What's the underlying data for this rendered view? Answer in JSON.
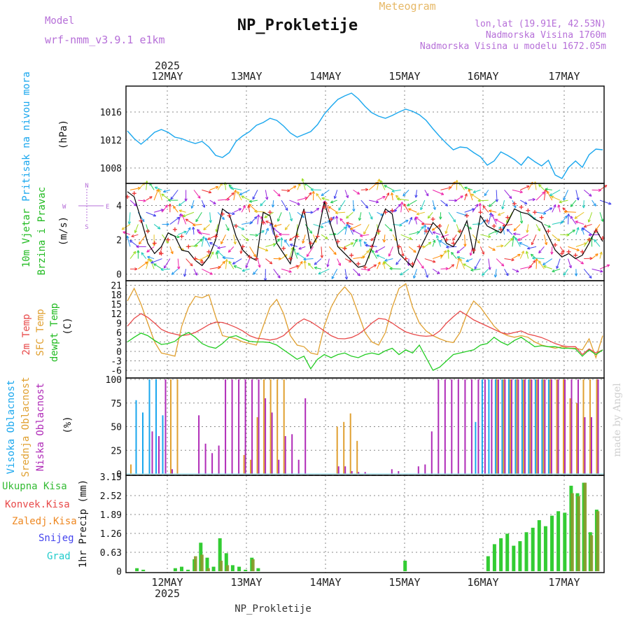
{
  "header": {
    "model_label": "Model",
    "model_name": "wrf-nmm_v3.9.1  e1km",
    "title": "NP_Prokletije",
    "subtitle": "Meteogram",
    "lonlat": "lon,lat (19.91E, 42.53N)",
    "altitude": "Nadmorska Visina 1760m",
    "model_altitude": "Nadmorska Visina u modelu 1672.05m",
    "footer_station": "NP_Prokletije",
    "made_by": "made by Angel"
  },
  "time_axis": {
    "year": "2025",
    "days": [
      "12MAY",
      "13MAY",
      "14MAY",
      "15MAY",
      "16MAY",
      "17MAY"
    ]
  },
  "colors": {
    "pressure": "#1aa7ee",
    "wind_speed": "#000000",
    "gust": "#ee3333",
    "temp2m": "#e84a4a",
    "sfc_temp": "#e0a030",
    "dewpoint": "#22cc22",
    "high_cloud": "#1aa7ee",
    "mid_cloud": "#e0a030",
    "low_cloud": "#b02cb8",
    "total_precip": "#33cc33",
    "conv_precip": "#e84a4a",
    "frozen_precip": "#ee8822",
    "snow": "#4444ee",
    "hail": "#22cccc",
    "label_purple": "#b66fd8"
  },
  "panels": {
    "pressure": {
      "label1": "Pritisak na nivou mora",
      "unit": "(hPa)",
      "ticks": [
        "1008",
        "1012",
        "1016"
      ]
    },
    "wind": {
      "label1": "10m Vjetar",
      "label2": "Brzina i Pravac",
      "unit": "(m/s)",
      "ticks": [
        "0",
        "2",
        "4"
      ],
      "compass": {
        "n": "N",
        "s": "S",
        "e": "E",
        "w": "W"
      }
    },
    "temp": {
      "label1": "2m Temp",
      "label2": "SFC Temp",
      "label3": "dewpt Temp",
      "unit": "(C)",
      "ticks": [
        "-6",
        "-3",
        "0",
        "3",
        "6",
        "9",
        "12",
        "15",
        "18",
        "21"
      ]
    },
    "cloud": {
      "label1": "Visoka Oblacnost",
      "label2": "Srednja Oblacnost",
      "label3": "Niska Oblacnost",
      "unit": "(%)",
      "ticks": [
        "0",
        "25",
        "50",
        "75",
        "100"
      ]
    },
    "precip": {
      "label_total": "Ukupna Kisa",
      "label_conv": "Konvek.Kisa",
      "label_frozen": "Zaledj.Kisa",
      "label_snow": "Snijeg",
      "label_hail": "Grad",
      "unit": "1hr Precip (mm)",
      "ticks": [
        "0",
        "0.63",
        "1.26",
        "1.89",
        "2.52",
        "3.15"
      ]
    }
  },
  "chart_data": [
    {
      "type": "line",
      "series": [
        {
          "values": [
            1013.3,
            1012.2,
            1011.4,
            1012.2,
            1013.1,
            1013.5,
            1013.1,
            1012.4,
            1012.2,
            1011.8,
            1011.5,
            1011.8,
            1011.0,
            1009.8,
            1009.5,
            1010.2,
            1011.8,
            1012.6,
            1013.2,
            1014.1,
            1014.5,
            1015.1,
            1014.8,
            1014.0,
            1013.0,
            1012.4,
            1012.8,
            1013.2,
            1014.2,
            1015.7,
            1016.8,
            1017.8,
            1018.3,
            1018.7,
            1017.9,
            1016.8,
            1015.9,
            1015.4,
            1015.1,
            1015.5,
            1016.0,
            1016.4,
            1016.1,
            1015.6,
            1014.8,
            1013.6,
            1012.5,
            1011.5,
            1010.6,
            1011.0,
            1010.9,
            1010.2,
            1009.6,
            1008.4,
            1009.0,
            1010.3,
            1009.8,
            1009.2,
            1008.4,
            1009.6,
            1008.9,
            1008.3,
            1009.1,
            1007.0,
            1006.5,
            1008.1,
            1009.0,
            1008.1,
            1009.9,
            1010.7,
            1010.6
          ]
        }
      ],
      "ylim": [
        1006,
        1019.5
      ]
    },
    {
      "type": "line",
      "series": [
        {
          "values": [
            4.8,
            4.5,
            3.2,
            1.8,
            1.2,
            1.6,
            2.4,
            2.2,
            1.4,
            1.3,
            0.8,
            0.5,
            1.0,
            2.0,
            3.8,
            3.5,
            2.2,
            1.4,
            1.0,
            0.8,
            3.6,
            3.4,
            1.8,
            1.2,
            0.6,
            2.5,
            3.8,
            1.5,
            2.2,
            4.2,
            2.8,
            1.6,
            1.2,
            0.8,
            0.4,
            0.5,
            1.5,
            2.8,
            3.8,
            3.5,
            1.2,
            0.8,
            0.4,
            1.4,
            2.2,
            3.0,
            2.6,
            1.8,
            1.6,
            2.2,
            3.1,
            1.2,
            3.4,
            2.8,
            2.6,
            2.4,
            3.0,
            3.8,
            3.6,
            3.5,
            3.2,
            3.0,
            2.2,
            1.4,
            1.0,
            1.2,
            0.9,
            1.1,
            1.8,
            2.6,
            1.9
          ]
        },
        {
          "values": [
            4.5,
            4.7,
            3.1,
            2.5,
            1.8,
            1.2,
            2.0,
            2.6,
            2.2,
            1.6,
            0.9,
            0.7,
            1.3,
            2.2,
            3.5,
            3.4,
            2.8,
            1.6,
            1.0,
            0.9,
            3.0,
            3.6,
            2.2,
            1.5,
            0.9,
            2.2,
            3.6,
            1.8,
            2.2,
            3.9,
            3.2,
            1.9,
            1.5,
            1.1,
            0.6,
            0.4,
            1.6,
            2.5,
            3.6,
            3.7,
            1.6,
            0.9,
            0.6,
            1.6,
            2.5,
            3.2,
            2.8,
            2.0,
            1.8,
            2.5,
            3.4,
            1.4,
            3.6,
            3.1,
            2.8,
            2.6,
            3.3,
            4.1,
            3.9,
            3.7,
            3.6,
            3.3,
            2.5,
            1.7,
            1.2,
            1.3,
            1.1,
            1.3,
            2.0,
            2.5,
            2.1
          ]
        }
      ],
      "ylim": [
        -0.3,
        5.2
      ]
    },
    {
      "type": "line",
      "series": [
        {
          "values": [
            8.0,
            10.5,
            12.0,
            10.8,
            9.0,
            7.0,
            6.0,
            5.5,
            5.0,
            5.3,
            6.0,
            7.2,
            8.5,
            9.3,
            9.2,
            8.5,
            7.6,
            6.5,
            5.0,
            4.2,
            4.0,
            3.6,
            4.0,
            5.0,
            7.0,
            9.0,
            10.3,
            9.4,
            8.0,
            6.5,
            5.0,
            4.1,
            4.0,
            4.4,
            5.4,
            7.0,
            9.0,
            10.5,
            10.2,
            9.0,
            7.5,
            6.2,
            5.5,
            5.0,
            4.8,
            5.0,
            6.5,
            9.0,
            11.0,
            12.8,
            11.5,
            10.0,
            9.0,
            8.0,
            7.0,
            6.0,
            5.5,
            6.0,
            6.5,
            5.5,
            5.0,
            4.4,
            3.5,
            2.5,
            1.8,
            1.5,
            1.5,
            -1.0,
            0.8,
            -0.5,
            0.5
          ]
        },
        {
          "values": [
            16.0,
            20.0,
            15.0,
            9.0,
            3.0,
            -0.5,
            -1.0,
            -1.5,
            8.0,
            14.0,
            17.5,
            17.0,
            18.0,
            11.0,
            5.0,
            4.5,
            4.0,
            3.0,
            2.5,
            2.0,
            8.0,
            14.0,
            16.5,
            12.0,
            5.0,
            2.0,
            1.5,
            -0.5,
            -1.0,
            8.0,
            14.0,
            18.0,
            20.5,
            18.0,
            12.0,
            6.0,
            3.0,
            2.0,
            6.0,
            14.0,
            20.0,
            21.5,
            14.0,
            9.0,
            6.5,
            5.0,
            4.0,
            3.2,
            2.8,
            6.0,
            12.0,
            16.0,
            14.0,
            11.0,
            8.0,
            6.0,
            5.0,
            4.5,
            5.0,
            4.5,
            3.0,
            2.0,
            1.5,
            1.0,
            1.5,
            1.0,
            1.0,
            0.5,
            4.0,
            -2.0,
            5.0
          ]
        },
        {
          "values": [
            3.0,
            4.5,
            5.8,
            5.0,
            3.5,
            2.2,
            2.5,
            3.2,
            5.0,
            6.0,
            4.5,
            2.5,
            1.5,
            1.0,
            2.5,
            4.5,
            5.0,
            4.0,
            3.2,
            3.0,
            3.0,
            2.8,
            2.0,
            0.5,
            -1.0,
            -2.5,
            -1.5,
            -5.5,
            -2.5,
            -1.0,
            -2.0,
            -1.0,
            -0.5,
            -1.5,
            -2.0,
            -1.0,
            -0.5,
            -1.0,
            0.2,
            1.0,
            -1.0,
            0.5,
            -0.5,
            2.0,
            -2.0,
            -6.0,
            -5.0,
            -3.0,
            -1.0,
            -0.5,
            0.0,
            0.5,
            2.0,
            2.5,
            4.5,
            3.0,
            2.0,
            3.5,
            4.5,
            3.0,
            1.5,
            1.8,
            1.5,
            1.5,
            1.0,
            1.0,
            0.8,
            -1.5,
            0.5,
            -1.0,
            0.5
          ]
        }
      ],
      "ylim": [
        -8,
        22
      ]
    },
    {
      "type": "bar",
      "series": [
        {
          "values": [
            0,
            78,
            65,
            100,
            100,
            62,
            0,
            0,
            0,
            0,
            0,
            0,
            0,
            0,
            0,
            0,
            0,
            0,
            0,
            0,
            0,
            0,
            0,
            0,
            0,
            0,
            0,
            0,
            0,
            0,
            0,
            0,
            0,
            0,
            0,
            0,
            0,
            0,
            0,
            0,
            0,
            0,
            0,
            0,
            0,
            0,
            0,
            0,
            0,
            0,
            0,
            0,
            55,
            100,
            100,
            100,
            100,
            100,
            100,
            100,
            100,
            100,
            100,
            100,
            0,
            0,
            0,
            0,
            0,
            0,
            0
          ]
        },
        {
          "values": [
            10,
            0,
            0,
            0,
            0,
            0,
            100,
            100,
            0,
            0,
            0,
            0,
            0,
            0,
            0,
            0,
            0,
            20,
            15,
            60,
            100,
            100,
            100,
            100,
            0,
            0,
            0,
            0,
            0,
            0,
            0,
            50,
            55,
            64,
            35,
            0,
            0,
            0,
            0,
            0,
            0,
            0,
            0,
            0,
            0,
            0,
            0,
            0,
            0,
            0,
            0,
            0,
            0,
            0,
            0,
            100,
            100,
            100,
            100,
            100,
            100,
            100,
            100,
            100,
            100,
            100,
            80,
            75,
            100,
            100,
            100
          ]
        },
        {
          "values": [
            0,
            0,
            0,
            45,
            40,
            100,
            5,
            0,
            0,
            0,
            62,
            32,
            22,
            30,
            100,
            100,
            100,
            100,
            100,
            100,
            80,
            65,
            15,
            40,
            42,
            15,
            80,
            0,
            0,
            0,
            0,
            8,
            8,
            3,
            2,
            2,
            0,
            0,
            0,
            5,
            3,
            0,
            0,
            8,
            10,
            45,
            100,
            100,
            100,
            100,
            100,
            100,
            100,
            100,
            100,
            100,
            100,
            100,
            100,
            100,
            100,
            100,
            100,
            100,
            100,
            100,
            100,
            100,
            60,
            60,
            100
          ]
        }
      ],
      "ylim": [
        0,
        100
      ]
    },
    {
      "type": "bar",
      "series": [
        {
          "values": [
            0,
            0.1,
            0.05,
            0,
            0,
            0,
            0,
            0.1,
            0.15,
            0.05,
            0.4,
            0.95,
            0.45,
            0.15,
            1.1,
            0.6,
            0.2,
            0.15,
            0.05,
            0.45,
            0.1,
            0,
            0,
            0,
            0,
            0,
            0,
            0,
            0,
            0,
            0,
            0,
            0,
            0,
            0,
            0,
            0,
            0,
            0,
            0,
            0,
            0,
            0,
            0.35,
            0,
            0,
            0,
            0,
            0,
            0,
            0,
            0,
            0,
            0,
            0,
            0,
            0.5,
            0.9,
            1.1,
            1.25,
            0.85,
            1.0,
            1.3,
            1.45,
            1.7,
            1.5,
            1.85,
            2.0,
            1.95,
            2.85,
            2.6,
            2.95,
            1.3,
            2.05
          ]
        },
        {
          "values": [
            0,
            0,
            0,
            0,
            0,
            0,
            0,
            0,
            0,
            0,
            0.5,
            0.55,
            0.1,
            0,
            0.35,
            0.2,
            0,
            0,
            0,
            0.4,
            0,
            0,
            0,
            0,
            0,
            0,
            0,
            0,
            0,
            0,
            0,
            0,
            0,
            0,
            0,
            0,
            0,
            0,
            0,
            0,
            0,
            0,
            0,
            0,
            0,
            0,
            0,
            0,
            0,
            0,
            0,
            0,
            0,
            0,
            0,
            0,
            0,
            0,
            0,
            0,
            0,
            0,
            0,
            0,
            0,
            0,
            0,
            0,
            0,
            2.6,
            2.5,
            2.95,
            1.2,
            2.0
          ]
        }
      ],
      "ylim": [
        0,
        3.15
      ]
    }
  ]
}
